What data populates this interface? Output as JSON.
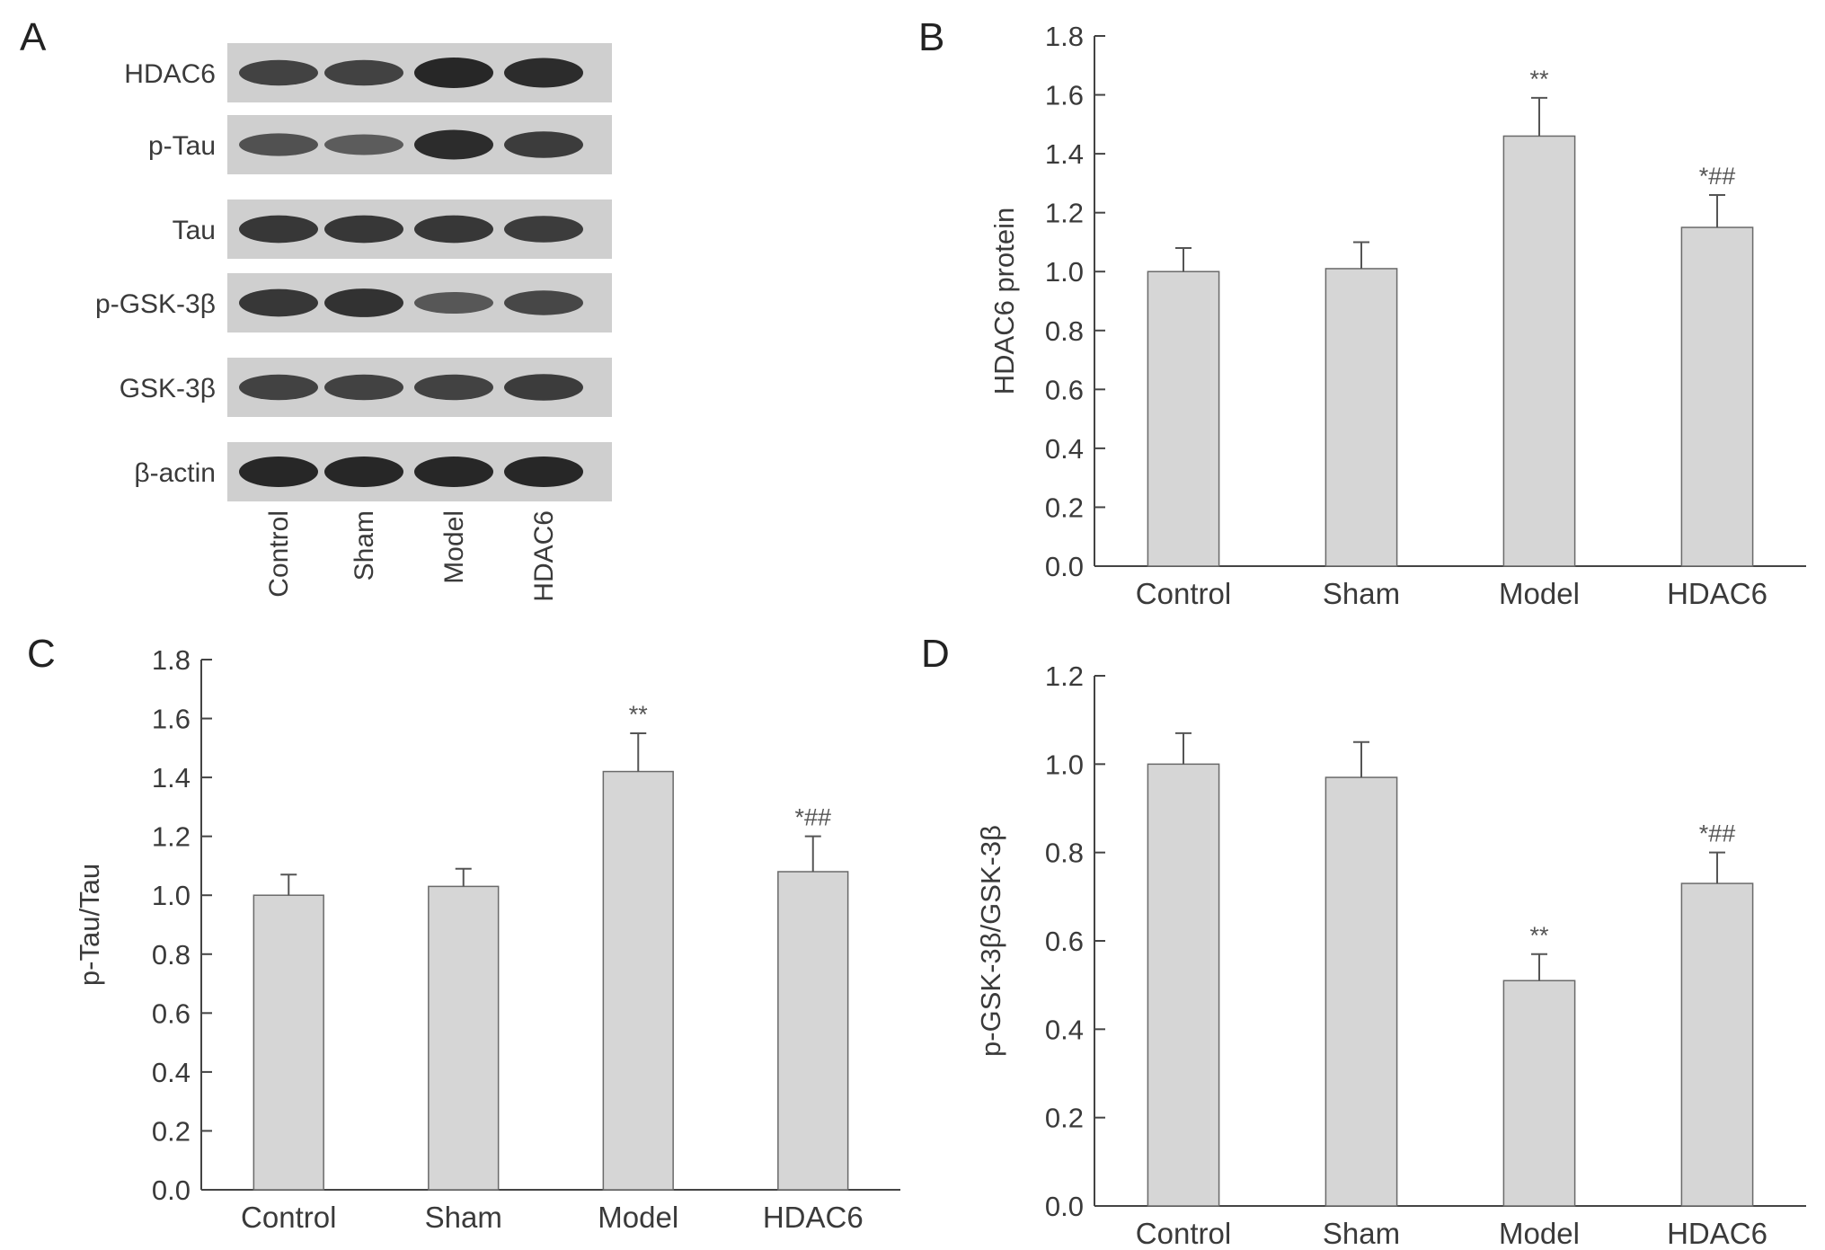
{
  "panel_labels": [
    "A",
    "B",
    "C",
    "D"
  ],
  "blot": {
    "rows": [
      "HDAC6",
      "p-Tau",
      "Tau",
      "p-GSK-3β",
      "GSK-3β",
      "β-actin"
    ],
    "lanes": [
      "Control",
      "Sham",
      "Model",
      "HDAC6"
    ],
    "band_intensity": [
      [
        0.75,
        0.75,
        1.0,
        0.95
      ],
      [
        0.6,
        0.5,
        0.95,
        0.8
      ],
      [
        0.85,
        0.85,
        0.85,
        0.8
      ],
      [
        0.85,
        0.9,
        0.55,
        0.7
      ],
      [
        0.75,
        0.75,
        0.75,
        0.8
      ],
      [
        1.0,
        1.0,
        1.0,
        1.0
      ]
    ],
    "colors": {
      "membrane": "#cfcfcf",
      "band": "#1e1e1e"
    }
  },
  "chart_data": [
    {
      "type": "bar",
      "panel": "B",
      "categories": [
        "Control",
        "Sham",
        "Model",
        "HDAC6"
      ],
      "values": [
        1.0,
        1.01,
        1.46,
        1.15
      ],
      "errors": [
        0.08,
        0.09,
        0.13,
        0.11
      ],
      "annotations": [
        "",
        "",
        "**",
        "*##"
      ],
      "ylabel": "HDAC6 protein",
      "xlabel": "",
      "ylim": [
        0,
        1.8
      ],
      "yticks": [
        "0.0",
        "0.2",
        "0.4",
        "0.6",
        "0.8",
        "1.0",
        "1.2",
        "1.4",
        "1.6",
        "1.8"
      ],
      "grid": false,
      "bar_color": "#d6d6d6"
    },
    {
      "type": "bar",
      "panel": "C",
      "categories": [
        "Control",
        "Sham",
        "Model",
        "HDAC6"
      ],
      "values": [
        1.0,
        1.03,
        1.42,
        1.08
      ],
      "errors": [
        0.07,
        0.06,
        0.13,
        0.12
      ],
      "annotations": [
        "",
        "",
        "**",
        "*##"
      ],
      "ylabel": "p-Tau/Tau",
      "xlabel": "",
      "ylim": [
        0,
        1.8
      ],
      "yticks": [
        "0.0",
        "0.2",
        "0.4",
        "0.6",
        "0.8",
        "1.0",
        "1.2",
        "1.4",
        "1.6",
        "1.8"
      ],
      "grid": false,
      "bar_color": "#d6d6d6"
    },
    {
      "type": "bar",
      "panel": "D",
      "categories": [
        "Control",
        "Sham",
        "Model",
        "HDAC6"
      ],
      "values": [
        1.0,
        0.97,
        0.51,
        0.73
      ],
      "errors": [
        0.07,
        0.08,
        0.06,
        0.07
      ],
      "annotations": [
        "",
        "",
        "**",
        "*##"
      ],
      "ylabel": "p-GSK-3β/GSK-3β",
      "xlabel": "",
      "ylim": [
        0,
        1.2
      ],
      "yticks": [
        "0.0",
        "0.2",
        "0.4",
        "0.6",
        "0.8",
        "1.0",
        "1.2"
      ],
      "grid": false,
      "bar_color": "#d6d6d6"
    }
  ]
}
